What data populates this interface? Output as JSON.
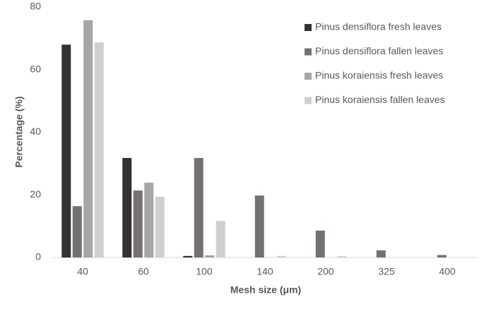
{
  "chart_data": {
    "type": "bar",
    "x_label": "Mesh size (μm)",
    "y_label": "Percentage (%)",
    "categories": [
      "40",
      "60",
      "100",
      "140",
      "200",
      "325",
      "400"
    ],
    "series": [
      {
        "name": "Pinus densiflora fresh leaves",
        "color": "#333333",
        "values": [
          68,
          31.8,
          0.5,
          0,
          0,
          0,
          0
        ]
      },
      {
        "name": "Pinus densiflora fallen leaves",
        "color": "#767171",
        "values": [
          16.4,
          21.4,
          31.8,
          19.8,
          8.6,
          2.3,
          0.8
        ]
      },
      {
        "name": "Pinus koraiensis fresh leaves",
        "color": "#a6a6a6",
        "values": [
          75.8,
          23.9,
          0.7,
          0,
          0,
          0,
          0
        ]
      },
      {
        "name": "Pinus koraiensis fallen leaves",
        "color": "#d0d0d0",
        "values": [
          68.7,
          19.4,
          11.7,
          0.5,
          0.4,
          0,
          0
        ]
      }
    ],
    "ylim": [
      0,
      80
    ],
    "yticks": [
      0,
      20,
      40,
      60,
      80
    ],
    "grid": false,
    "legend": "top-right"
  }
}
